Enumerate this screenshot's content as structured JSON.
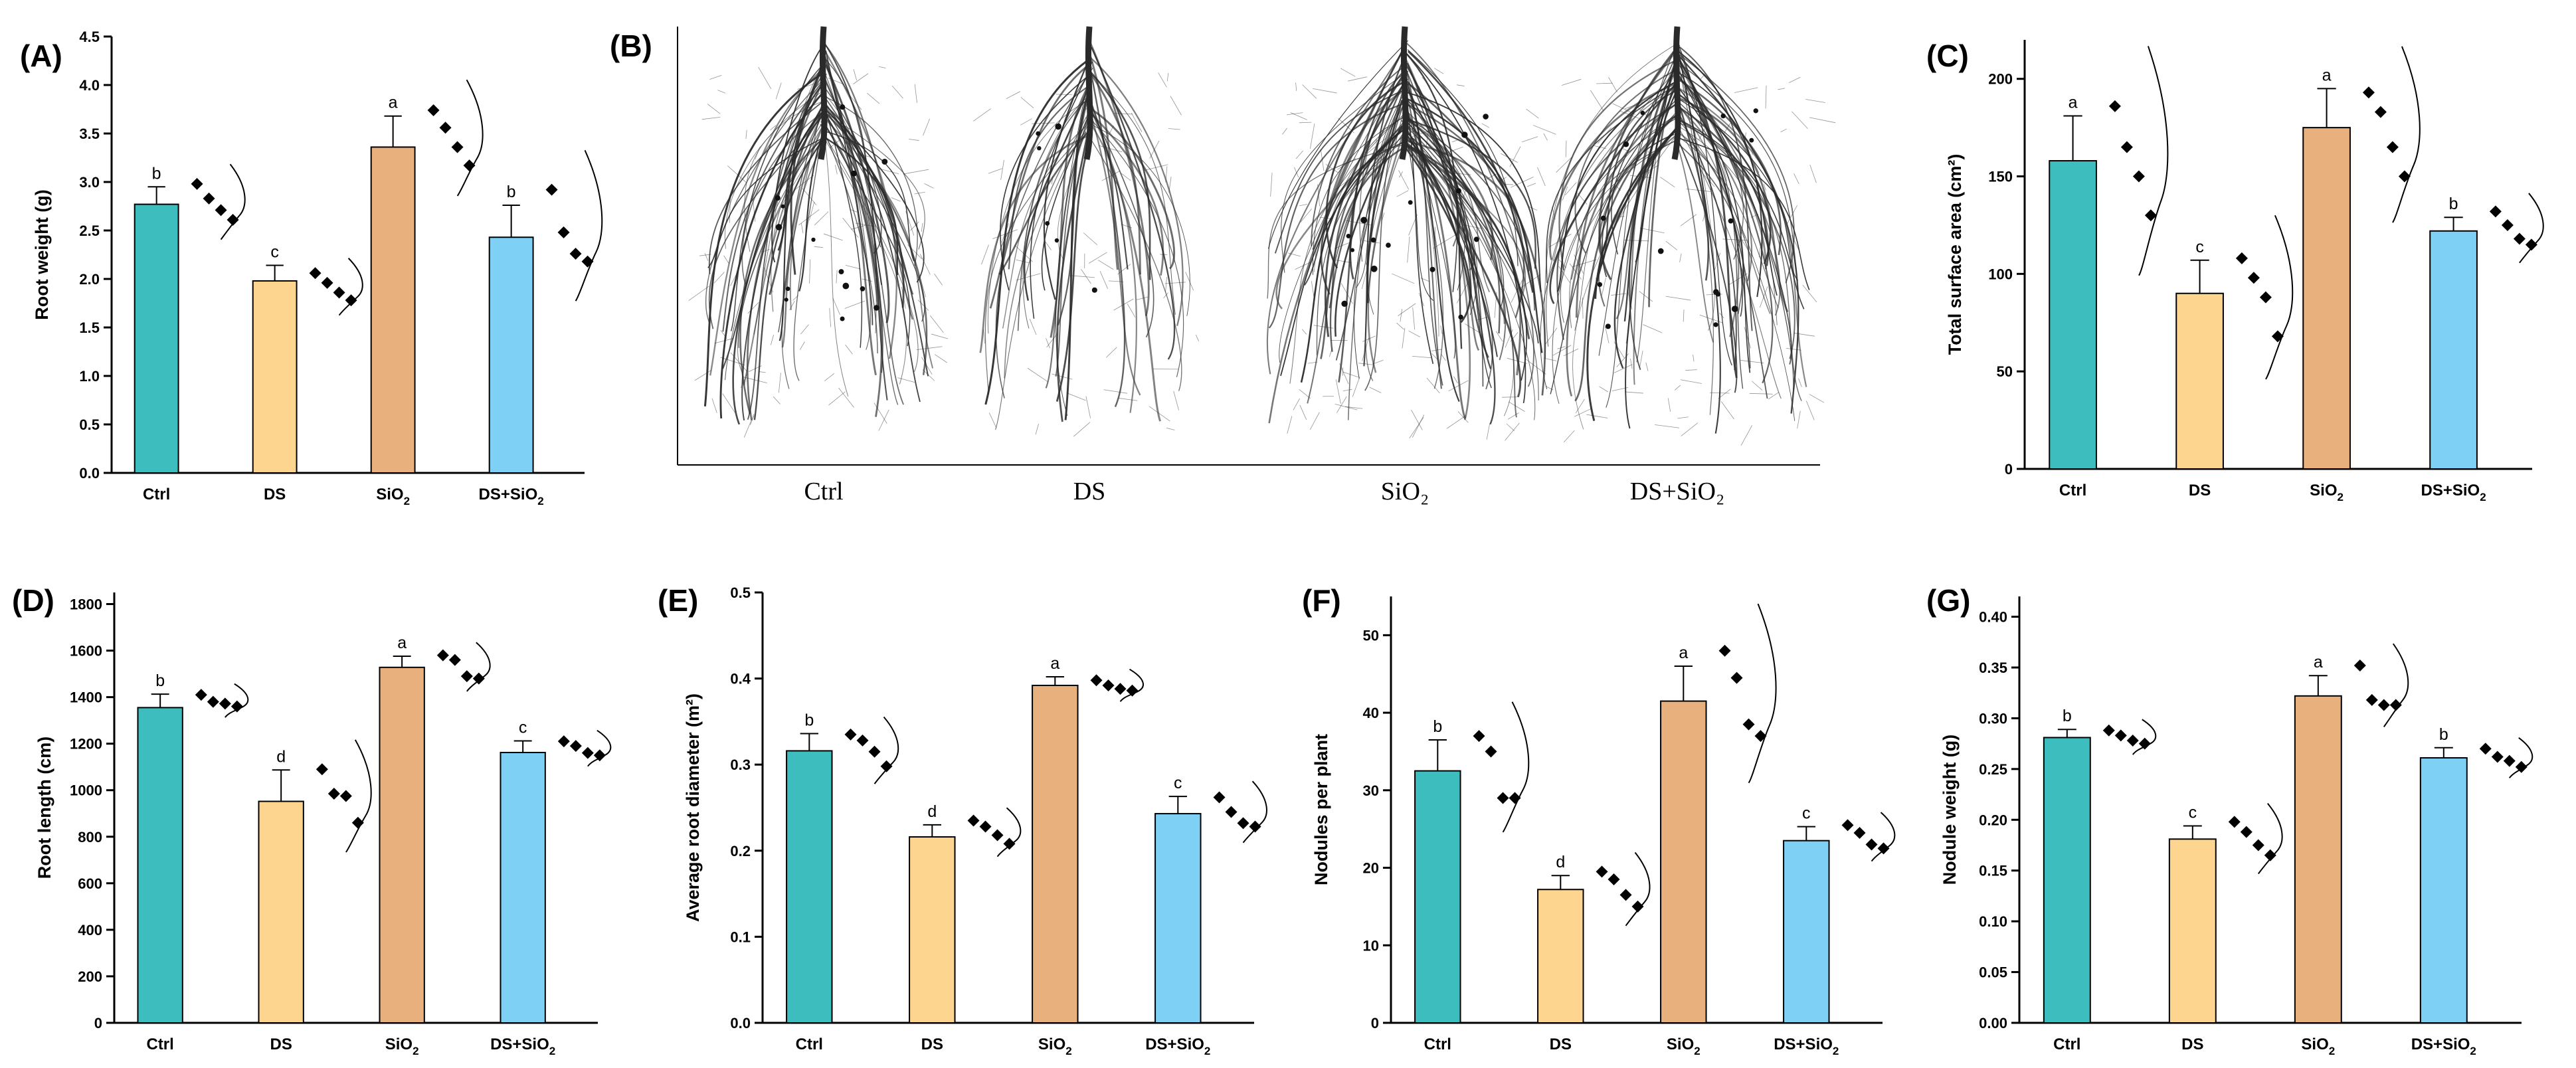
{
  "colors": {
    "Ctrl": "#3dbdbd",
    "DS": "#fdd58f",
    "SiO2": "#e8b07c",
    "DS+SiO2": "#7fd0f5",
    "axis": "#000000",
    "root_ink": "#2a2a2a"
  },
  "chart_data": [
    {
      "id": "A",
      "type": "bar",
      "panel_label": "(A)",
      "ylabel": "Root weight (g)",
      "xlabel": "",
      "categories": [
        "Ctrl",
        "DS",
        "SiO2",
        "DS+SiO2"
      ],
      "category_labels": [
        {
          "base": "Ctrl",
          "sub": ""
        },
        {
          "base": "DS",
          "sub": ""
        },
        {
          "base": "SiO",
          "sub": "2"
        },
        {
          "base": "DS+SiO",
          "sub": "2"
        }
      ],
      "values": [
        2.77,
        1.98,
        3.36,
        2.43
      ],
      "errors": [
        0.18,
        0.16,
        0.32,
        0.33
      ],
      "letters": [
        "b",
        "c",
        "a",
        "b"
      ],
      "points": [
        [
          2.98,
          2.83,
          2.71,
          2.61
        ],
        [
          2.06,
          1.96,
          1.86,
          1.78
        ],
        [
          3.74,
          3.56,
          3.36,
          3.17
        ],
        [
          2.92,
          2.48,
          2.26,
          2.18
        ]
      ],
      "ylim": [
        0,
        4.5
      ],
      "yticks": [
        0.0,
        0.5,
        1.0,
        1.5,
        2.0,
        2.5,
        3.0,
        3.5,
        4.0,
        4.5
      ],
      "ytick_labels": [
        "0.0",
        "0.5",
        "1.0",
        "1.5",
        "2.0",
        "2.5",
        "3.0",
        "3.5",
        "4.0",
        "4.5"
      ],
      "grid": false
    },
    {
      "id": "C",
      "type": "bar",
      "panel_label": "(C)",
      "ylabel": "Total surface area (cm²)",
      "xlabel": "",
      "categories": [
        "Ctrl",
        "DS",
        "SiO2",
        "DS+SiO2"
      ],
      "category_labels": [
        {
          "base": "Ctrl",
          "sub": ""
        },
        {
          "base": "DS",
          "sub": ""
        },
        {
          "base": "SiO",
          "sub": "2"
        },
        {
          "base": "DS+SiO",
          "sub": "2"
        }
      ],
      "values": [
        158,
        90,
        175,
        122
      ],
      "errors": [
        23,
        17,
        20,
        7
      ],
      "letters": [
        "a",
        "c",
        "a",
        "b"
      ],
      "points": [
        [
          186,
          165,
          150,
          130
        ],
        [
          108,
          98,
          88,
          68
        ],
        [
          193,
          183,
          165,
          150
        ],
        [
          132,
          125,
          118,
          115
        ]
      ],
      "ylim": [
        0,
        220
      ],
      "yticks": [
        0,
        50,
        100,
        150,
        200
      ],
      "ytick_labels": [
        "0",
        "50",
        "100",
        "150",
        "200"
      ],
      "grid": false
    },
    {
      "id": "D",
      "type": "bar",
      "panel_label": "(D)",
      "ylabel": "Root length (cm)",
      "xlabel": "",
      "categories": [
        "Ctrl",
        "DS",
        "SiO2",
        "DS+SiO2"
      ],
      "category_labels": [
        {
          "base": "Ctrl",
          "sub": ""
        },
        {
          "base": "DS",
          "sub": ""
        },
        {
          "base": "SiO",
          "sub": "2"
        },
        {
          "base": "DS+SiO",
          "sub": "2"
        }
      ],
      "values": [
        1355,
        952,
        1528,
        1162
      ],
      "errors": [
        58,
        135,
        48,
        50
      ],
      "letters": [
        "b",
        "d",
        "a",
        "c"
      ],
      "points": [
        [
          1410,
          1380,
          1372,
          1360
        ],
        [
          1090,
          985,
          975,
          860
        ],
        [
          1580,
          1560,
          1490,
          1480
        ],
        [
          1210,
          1190,
          1160,
          1150
        ]
      ],
      "ylim": [
        0,
        1850
      ],
      "yticks": [
        0,
        200,
        400,
        600,
        800,
        1000,
        1200,
        1400,
        1600,
        1800
      ],
      "ytick_labels": [
        "0",
        "200",
        "400",
        "600",
        "800",
        "1000",
        "1200",
        "1400",
        "1600",
        "1800"
      ],
      "grid": false
    },
    {
      "id": "E",
      "type": "bar",
      "panel_label": "(E)",
      "ylabel": "Average root diameter (m²)",
      "xlabel": "",
      "categories": [
        "Ctrl",
        "DS",
        "SiO2",
        "DS+SiO2"
      ],
      "category_labels": [
        {
          "base": "Ctrl",
          "sub": ""
        },
        {
          "base": "DS",
          "sub": ""
        },
        {
          "base": "SiO",
          "sub": "2"
        },
        {
          "base": "DS+SiO",
          "sub": "2"
        }
      ],
      "values": [
        0.316,
        0.216,
        0.392,
        0.243
      ],
      "errors": [
        0.02,
        0.014,
        0.01,
        0.02
      ],
      "letters": [
        "b",
        "d",
        "a",
        "c"
      ],
      "points": [
        [
          0.335,
          0.328,
          0.315,
          0.298
        ],
        [
          0.235,
          0.228,
          0.218,
          0.208
        ],
        [
          0.398,
          0.392,
          0.388,
          0.386
        ],
        [
          0.262,
          0.245,
          0.232,
          0.228
        ]
      ],
      "ylim": [
        0,
        0.5
      ],
      "yticks": [
        0.0,
        0.1,
        0.2,
        0.3,
        0.4,
        0.5
      ],
      "ytick_labels": [
        "0.0",
        "0.1",
        "0.2",
        "0.3",
        "0.4",
        "0.5"
      ],
      "grid": false
    },
    {
      "id": "F",
      "type": "bar",
      "panel_label": "(F)",
      "ylabel": "Nodules per plant",
      "xlabel": "",
      "categories": [
        "Ctrl",
        "DS",
        "SiO2",
        "DS+SiO2"
      ],
      "category_labels": [
        {
          "base": "Ctrl",
          "sub": ""
        },
        {
          "base": "DS",
          "sub": ""
        },
        {
          "base": "SiO",
          "sub": "2"
        },
        {
          "base": "DS+SiO",
          "sub": "2"
        }
      ],
      "values": [
        32.5,
        17.2,
        41.5,
        23.5
      ],
      "errors": [
        4.0,
        1.8,
        4.5,
        1.8
      ],
      "letters": [
        "b",
        "d",
        "a",
        "c"
      ],
      "points": [
        [
          37,
          35,
          29,
          29
        ],
        [
          19.5,
          18.5,
          16.5,
          15
        ],
        [
          48,
          44.5,
          38.5,
          37
        ],
        [
          25.5,
          24.5,
          23,
          22.5
        ]
      ],
      "ylim": [
        0,
        55
      ],
      "yticks": [
        0,
        10,
        20,
        30,
        40,
        50
      ],
      "ytick_labels": [
        "0",
        "10",
        "20",
        "30",
        "40",
        "50"
      ],
      "grid": false
    },
    {
      "id": "G",
      "type": "bar",
      "panel_label": "(G)",
      "ylabel": "Nodule weight (g)",
      "xlabel": "",
      "categories": [
        "Ctrl",
        "DS",
        "SiO2",
        "DS+SiO2"
      ],
      "category_labels": [
        {
          "base": "Ctrl",
          "sub": ""
        },
        {
          "base": "DS",
          "sub": ""
        },
        {
          "base": "SiO",
          "sub": "2"
        },
        {
          "base": "DS+SiO",
          "sub": "2"
        }
      ],
      "values": [
        0.281,
        0.181,
        0.322,
        0.261
      ],
      "errors": [
        0.008,
        0.013,
        0.02,
        0.01
      ],
      "letters": [
        "b",
        "c",
        "a",
        "b"
      ],
      "points": [
        [
          0.288,
          0.283,
          0.278,
          0.275
        ],
        [
          0.198,
          0.188,
          0.175,
          0.165
        ],
        [
          0.352,
          0.318,
          0.313,
          0.313
        ],
        [
          0.27,
          0.262,
          0.258,
          0.252
        ]
      ],
      "ylim": [
        0,
        0.42
      ],
      "yticks": [
        0.0,
        0.05,
        0.1,
        0.15,
        0.2,
        0.25,
        0.3,
        0.35,
        0.4
      ],
      "ytick_labels": [
        "0.00",
        "0.05",
        "0.10",
        "0.15",
        "0.20",
        "0.25",
        "0.30",
        "0.35",
        "0.40"
      ],
      "grid": false
    }
  ],
  "photo_panel": {
    "panel_label": "(B)",
    "labels": [
      {
        "base": "Ctrl",
        "sub": ""
      },
      {
        "base": "DS",
        "sub": ""
      },
      {
        "base": "SiO",
        "sub": "₂"
      },
      {
        "base": "DS+SiO",
        "sub": "₂"
      }
    ]
  }
}
